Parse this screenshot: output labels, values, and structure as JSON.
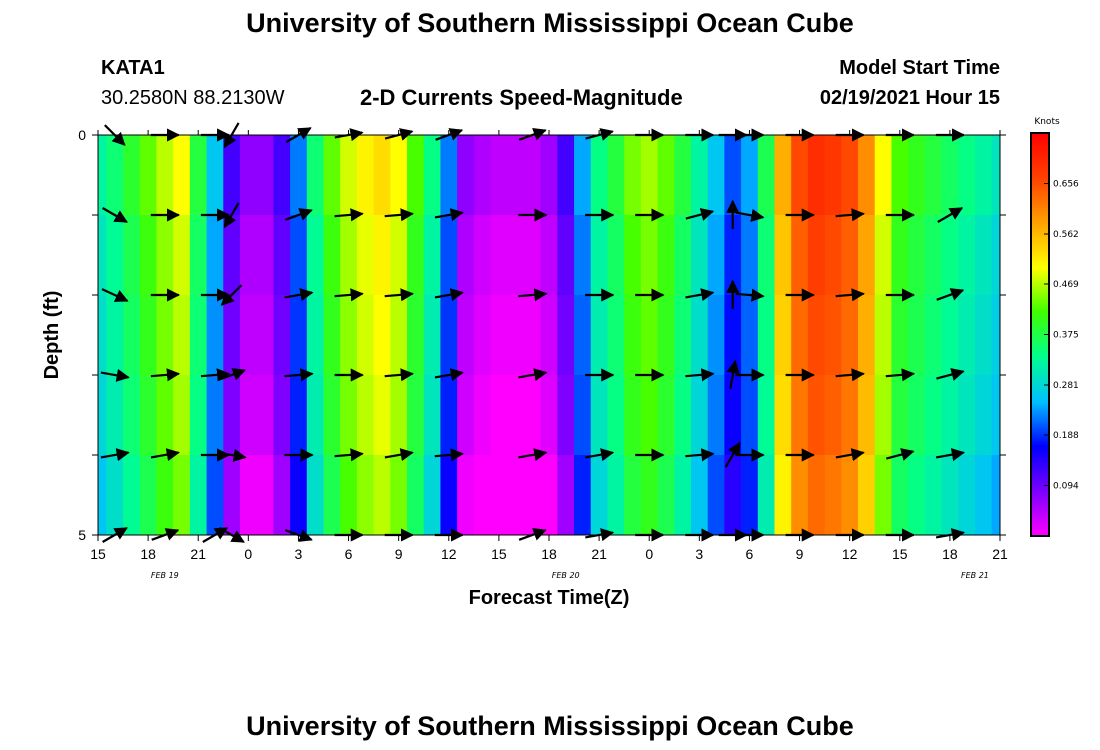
{
  "page": {
    "title_top": "University of Southern Mississippi Ocean Cube",
    "title_bottom": "University of Southern Mississippi Ocean Cube",
    "station": "KATA1",
    "coords": "30.2580N 88.2130W",
    "subtitle": "2-D Currents Speed-Magnitude",
    "model_start_label": "Model Start Time",
    "model_start_value": "02/19/2021 Hour 15"
  },
  "chart_data": {
    "type": "heatmap",
    "title": "2-D Currents Speed-Magnitude",
    "xlabel": "Forecast Time(Z)",
    "ylabel": "Depth (ft)",
    "x_hours": [
      15,
      16,
      17,
      18,
      19,
      20,
      21,
      22,
      23,
      24,
      25,
      26,
      27,
      28,
      29,
      30,
      31,
      32,
      33,
      34,
      35,
      36,
      37,
      38,
      39,
      40,
      41,
      42,
      43,
      44,
      45,
      46,
      47,
      48,
      49,
      50,
      51,
      52,
      53,
      54,
      55,
      56,
      57,
      58,
      59,
      60,
      61,
      62,
      63,
      64,
      65,
      66,
      67,
      68,
      69
    ],
    "x_tick_labels": [
      "15",
      "18",
      "21",
      "0",
      "3",
      "6",
      "9",
      "12",
      "15",
      "18",
      "21",
      "0",
      "3",
      "6",
      "9",
      "12",
      "15",
      "18",
      "21"
    ],
    "date_labels": [
      {
        "text": "FEB 19",
        "hour": 19
      },
      {
        "text": "FEB 20",
        "hour": 43
      },
      {
        "text": "FEB 21",
        "hour": 67.5
      }
    ],
    "y_tick_labels": [
      "0",
      "5"
    ],
    "ylim": [
      0,
      5
    ],
    "colorbar": {
      "unit": "Knots",
      "min": 0.0,
      "max": 0.75,
      "tick_values": [
        "0.656",
        "0.562",
        "0.469",
        "0.375",
        "0.281",
        "0.188",
        "0.094"
      ]
    },
    "speed_profile": [
      0.3,
      0.33,
      0.37,
      0.41,
      0.45,
      0.48,
      0.36,
      0.24,
      0.1,
      0.05,
      0.05,
      0.1,
      0.2,
      0.33,
      0.41,
      0.46,
      0.49,
      0.51,
      0.48,
      0.4,
      0.32,
      0.2,
      0.05,
      0.03,
      0.02,
      0.02,
      0.02,
      0.04,
      0.1,
      0.22,
      0.32,
      0.36,
      0.42,
      0.44,
      0.41,
      0.36,
      0.3,
      0.24,
      0.18,
      0.22,
      0.35,
      0.55,
      0.64,
      0.67,
      0.66,
      0.64,
      0.58,
      0.48,
      0.4,
      0.38,
      0.36,
      0.34,
      0.32,
      0.3,
      0.28
    ],
    "depth_layer_offsets": [
      0.02,
      0.0,
      -0.01,
      -0.02,
      -0.04
    ],
    "arrow_columns_hours": [
      16,
      19,
      22,
      23,
      27,
      30,
      33,
      36,
      41,
      45,
      48,
      51,
      53,
      54,
      57,
      60,
      63,
      66
    ],
    "arrow_rows_depth": [
      0,
      1,
      2,
      3,
      4,
      5
    ],
    "arrow_angles_deg": [
      [
        45,
        0,
        0,
        120,
        -30,
        -10,
        -15,
        -20,
        -20,
        -15,
        0,
        0,
        0,
        0,
        0,
        0,
        0,
        0
      ],
      [
        30,
        0,
        0,
        120,
        -20,
        -5,
        -5,
        -10,
        0,
        0,
        0,
        -15,
        -90,
        10,
        0,
        -5,
        0,
        -30
      ],
      [
        25,
        0,
        0,
        135,
        -10,
        -5,
        -5,
        -10,
        -5,
        0,
        0,
        -10,
        -90,
        5,
        0,
        -5,
        0,
        -20
      ],
      [
        10,
        -5,
        -5,
        -20,
        -5,
        0,
        -5,
        -10,
        -10,
        0,
        0,
        -5,
        -80,
        0,
        0,
        -5,
        -5,
        -15
      ],
      [
        -10,
        -10,
        0,
        10,
        0,
        -5,
        -10,
        -5,
        -10,
        -10,
        0,
        -5,
        -60,
        0,
        0,
        -10,
        -15,
        -10
      ],
      [
        -30,
        -20,
        -30,
        30,
        20,
        0,
        0,
        0,
        -20,
        -10,
        0,
        0,
        0,
        0,
        0,
        0,
        0,
        -10
      ]
    ]
  },
  "colors": {
    "background": "#ffffff",
    "arrow": "#000000",
    "colormap": [
      "#ff00ff",
      "#7a00ff",
      "#0000ff",
      "#00bfff",
      "#00ff90",
      "#40ff00",
      "#ffff00",
      "#ffa000",
      "#ff4000",
      "#ff0000"
    ]
  }
}
